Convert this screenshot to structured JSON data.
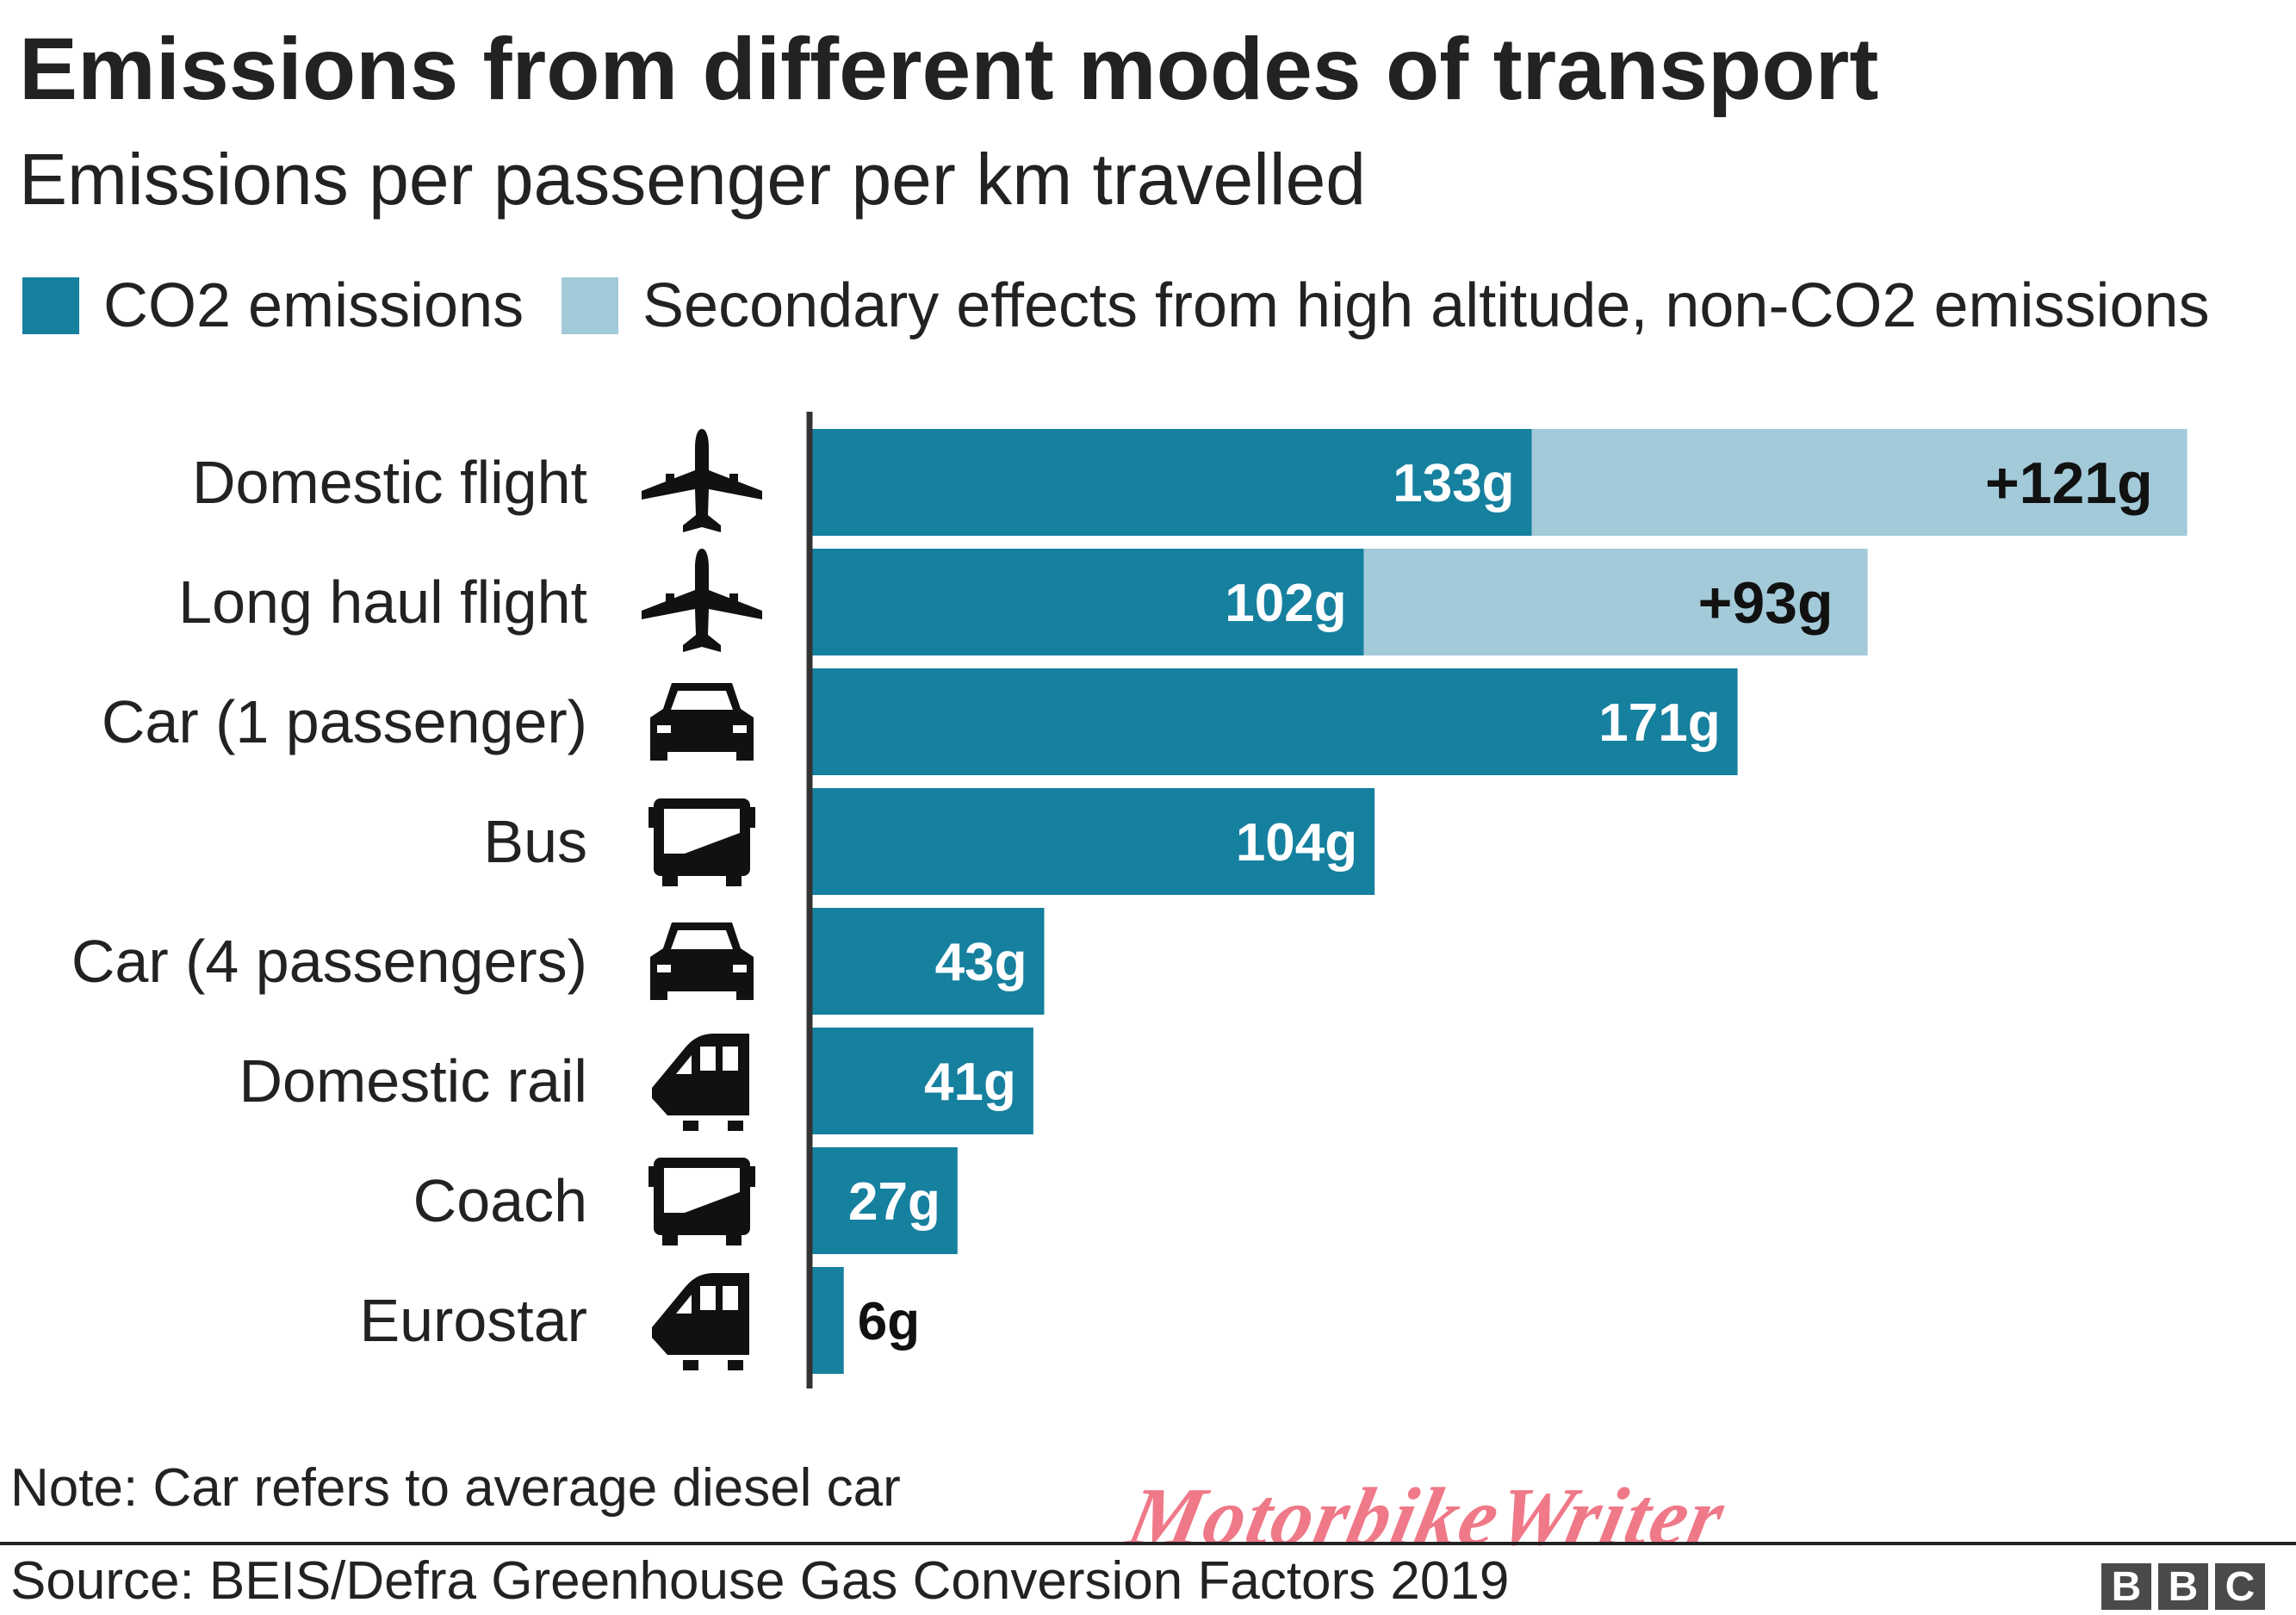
{
  "chart_data": {
    "type": "bar",
    "orientation": "horizontal",
    "stacked": true,
    "title": "Emissions from different modes of transport",
    "subtitle": "Emissions per passenger per km travelled",
    "unit": "g",
    "categories": [
      "Domestic flight",
      "Long haul flight",
      "Car (1 passenger)",
      "Bus",
      "Car (4 passengers)",
      "Domestic rail",
      "Coach",
      "Eurostar"
    ],
    "icons": [
      "plane-icon",
      "plane-icon",
      "car-icon",
      "bus-icon",
      "car-icon",
      "train-icon",
      "bus-icon",
      "train-icon"
    ],
    "series": [
      {
        "name": "CO2 emissions",
        "color": "#16809f",
        "values": [
          133,
          102,
          171,
          104,
          43,
          41,
          27,
          6
        ],
        "labels": [
          "133g",
          "102g",
          "171g",
          "104g",
          "43g",
          "41g",
          "27g",
          "6g"
        ]
      },
      {
        "name": "Secondary effects from high altitude, non-CO2 emissions",
        "color": "#a3cad9",
        "values": [
          121,
          93,
          0,
          0,
          0,
          0,
          0,
          0
        ],
        "labels": [
          "+121g",
          "+93g",
          "",
          "",
          "",
          "",
          "",
          ""
        ]
      }
    ],
    "xlim": [
      0,
      254
    ],
    "grid": false,
    "legend_position": "top-left"
  },
  "note": "Note: Car refers to average diesel car",
  "source": "Source: BEIS/Defra Greenhouse Gas Conversion Factors 2019",
  "watermark": "MotorbikeWriter",
  "logo": [
    "B",
    "B",
    "C"
  ],
  "colors": {
    "co2": "#16809f",
    "secondary": "#a3cad9",
    "axis": "#333333",
    "text": "#222222"
  }
}
